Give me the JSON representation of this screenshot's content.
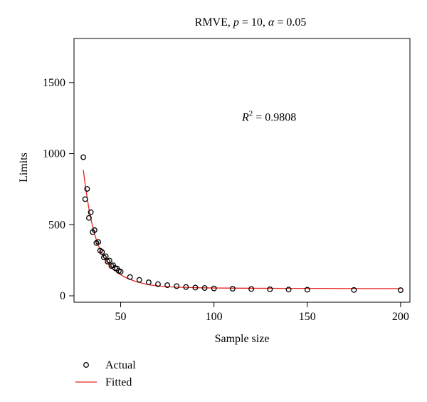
{
  "chart_data": {
    "type": "scatter",
    "title_parts": {
      "method": "RMVE, ",
      "p_symbol": "p",
      "p_value": " = 10, ",
      "alpha_symbol": "α",
      "alpha_value": " = 0.05"
    },
    "xlabel": "Sample size",
    "ylabel": "Limits",
    "xlim": [
      25,
      205
    ],
    "ylim": [
      -45,
      1810
    ],
    "x_ticks": [
      50,
      100,
      150,
      200
    ],
    "y_ticks": [
      0,
      500,
      1000,
      1500
    ],
    "grid": false,
    "annotation": {
      "symbol": "R",
      "superscript": "2",
      "text": " = 0.9808",
      "x": 115,
      "y": 1230
    },
    "legend": {
      "placement": "bottom-left-outside",
      "entries": [
        {
          "label": "Actual",
          "marker": "circle",
          "color": "#000000"
        },
        {
          "label": "Fitted",
          "marker": "line",
          "color": "#e8251f"
        }
      ]
    },
    "series": [
      {
        "name": "Actual",
        "kind": "points",
        "color": "#000000",
        "x": [
          30,
          31,
          32,
          33,
          34,
          35,
          36,
          37,
          38,
          39,
          40,
          41,
          42,
          43,
          44,
          45,
          46,
          47,
          48,
          49,
          50,
          55,
          60,
          65,
          70,
          75,
          80,
          85,
          90,
          95,
          100,
          110,
          120,
          130,
          140,
          150,
          175,
          200
        ],
        "y": [
          975,
          680,
          752,
          548,
          588,
          448,
          462,
          372,
          378,
          318,
          308,
          270,
          278,
          240,
          248,
          210,
          215,
          195,
          192,
          175,
          170,
          132,
          112,
          95,
          82,
          75,
          68,
          62,
          58,
          55,
          52,
          50,
          48,
          46,
          44,
          43,
          41,
          40
        ]
      },
      {
        "name": "Fitted",
        "kind": "line",
        "color": "#e8251f",
        "x": [
          30,
          31,
          32,
          33,
          34,
          35,
          36,
          37,
          38,
          39,
          40,
          42,
          44,
          46,
          48,
          50,
          52,
          55,
          58,
          60,
          65,
          70,
          75,
          80,
          90,
          100,
          120,
          140,
          160,
          180,
          200
        ],
        "y": [
          885,
          782,
          692,
          613,
          545,
          487,
          436,
          393,
          356,
          323,
          295,
          249,
          214,
          187,
          165,
          149,
          133,
          116,
          101,
          94,
          78,
          70,
          64,
          61,
          57,
          55,
          53,
          52,
          52,
          51,
          51
        ]
      }
    ]
  }
}
